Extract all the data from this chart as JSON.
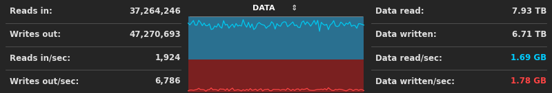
{
  "bg_color": "#252525",
  "panel_bg": "#1e1e1e",
  "border_color": "#555555",
  "text_color": "#e0e0e0",
  "cyan_color": "#00c8f0",
  "blue_fill": "#2a7090",
  "red_fill": "#7a2020",
  "label_color": "#ffffff",
  "highlight_cyan": "#00ccff",
  "highlight_red": "#ff4444",
  "left_labels": [
    "Reads in:",
    "Writes out:",
    "Reads in/sec:",
    "Writes out/sec:"
  ],
  "left_values": [
    "37,264,246",
    "47,270,693",
    "1,924",
    "6,786"
  ],
  "right_labels": [
    "Data read:",
    "Data written:",
    "Data read/sec:",
    "Data written/sec:"
  ],
  "right_values": [
    "7.93 TB",
    "6.71 TB",
    "1.69 GB",
    "1.78 GB"
  ],
  "right_value_colors": [
    "#e0e0e0",
    "#e0e0e0",
    "#00ccff",
    "#ff4444"
  ],
  "chart_title": "DATA",
  "chart_arrow": "⇕",
  "figwidth": 8.0,
  "figheight": 1.36,
  "dpi": 100
}
